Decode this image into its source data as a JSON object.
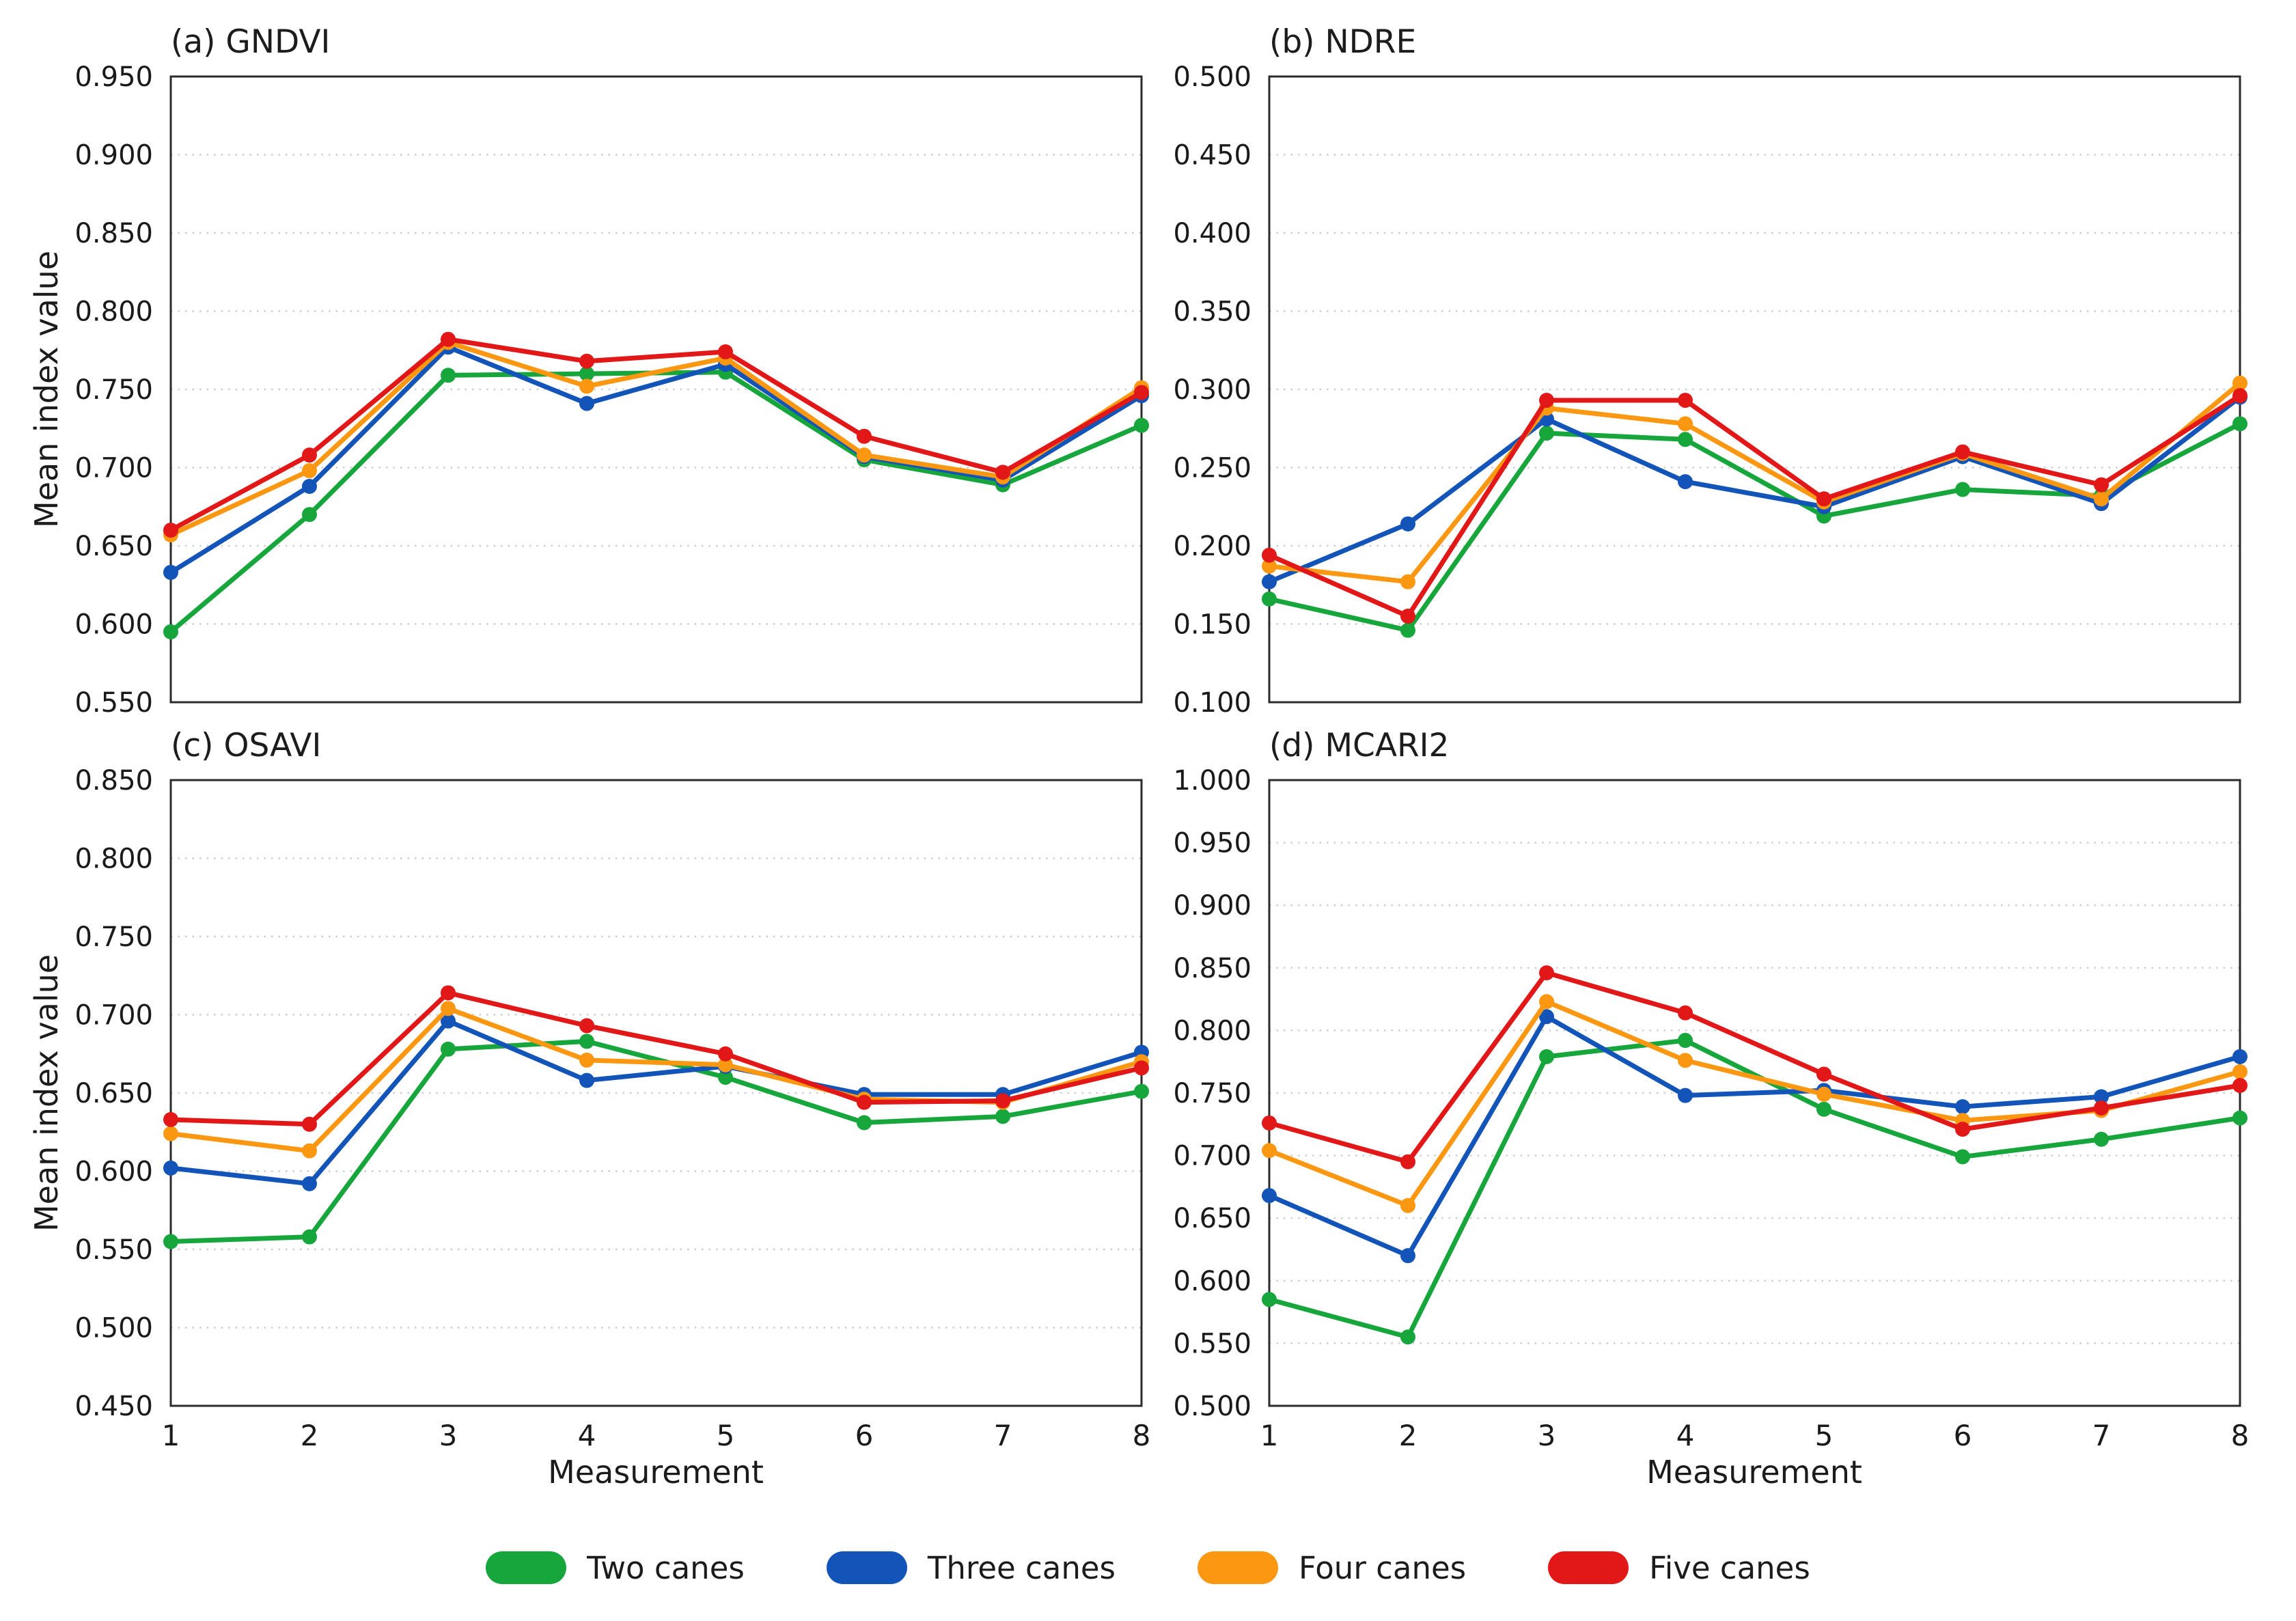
{
  "figure": {
    "ylabel": "Mean index value",
    "xlabel": "Measurement",
    "background": "#ffffff",
    "axis_color": "#2b2b2b",
    "grid_color": "#cccccc",
    "legend_position": "bottom-center",
    "legend": [
      {
        "label": "Two canes",
        "color": "#17A63C"
      },
      {
        "label": "Three canes",
        "color": "#1254B8"
      },
      {
        "label": "Four canes",
        "color": "#FC9712"
      },
      {
        "label": "Five canes",
        "color": "#E21717"
      }
    ]
  },
  "chart_data": [
    {
      "type": "line",
      "panel": "a",
      "title": "(a) GNDVI",
      "xlabel": "Measurement",
      "ylabel": "Mean index value",
      "x": [
        1,
        2,
        3,
        4,
        5,
        6,
        7,
        8
      ],
      "ylim": [
        0.55,
        0.95
      ],
      "ytick_step": 0.05,
      "grid": "horizontal-dotted",
      "show_x_tick_labels": false,
      "series": [
        {
          "name": "Two canes",
          "color": "#17A63C",
          "values": [
            0.595,
            0.67,
            0.759,
            0.76,
            0.761,
            0.705,
            0.689,
            0.727
          ]
        },
        {
          "name": "Three canes",
          "color": "#1254B8",
          "values": [
            0.633,
            0.688,
            0.777,
            0.741,
            0.766,
            0.707,
            0.692,
            0.746
          ]
        },
        {
          "name": "Four canes",
          "color": "#FC9712",
          "values": [
            0.657,
            0.698,
            0.78,
            0.752,
            0.77,
            0.708,
            0.694,
            0.751
          ]
        },
        {
          "name": "Five canes",
          "color": "#E21717",
          "values": [
            0.66,
            0.708,
            0.782,
            0.768,
            0.774,
            0.72,
            0.697,
            0.748
          ]
        }
      ]
    },
    {
      "type": "line",
      "panel": "b",
      "title": "(b) NDRE",
      "xlabel": "Measurement",
      "ylabel": "Mean index value",
      "x": [
        1,
        2,
        3,
        4,
        5,
        6,
        7,
        8
      ],
      "ylim": [
        0.1,
        0.5
      ],
      "ytick_step": 0.05,
      "grid": "horizontal-dotted",
      "show_x_tick_labels": false,
      "series": [
        {
          "name": "Two canes",
          "color": "#17A63C",
          "values": [
            0.166,
            0.146,
            0.272,
            0.268,
            0.219,
            0.236,
            0.232,
            0.278
          ]
        },
        {
          "name": "Three canes",
          "color": "#1254B8",
          "values": [
            0.177,
            0.214,
            0.281,
            0.241,
            0.225,
            0.257,
            0.227,
            0.295
          ]
        },
        {
          "name": "Four canes",
          "color": "#FC9712",
          "values": [
            0.187,
            0.177,
            0.288,
            0.278,
            0.228,
            0.259,
            0.23,
            0.304
          ]
        },
        {
          "name": "Five canes",
          "color": "#E21717",
          "values": [
            0.194,
            0.155,
            0.293,
            0.293,
            0.23,
            0.26,
            0.239,
            0.296
          ]
        }
      ]
    },
    {
      "type": "line",
      "panel": "c",
      "title": "(c) OSAVI",
      "xlabel": "Measurement",
      "ylabel": "Mean index value",
      "x": [
        1,
        2,
        3,
        4,
        5,
        6,
        7,
        8
      ],
      "ylim": [
        0.45,
        0.85
      ],
      "ytick_step": 0.05,
      "grid": "horizontal-dotted",
      "show_x_tick_labels": true,
      "series": [
        {
          "name": "Two canes",
          "color": "#17A63C",
          "values": [
            0.555,
            0.558,
            0.678,
            0.683,
            0.66,
            0.631,
            0.635,
            0.651
          ]
        },
        {
          "name": "Three canes",
          "color": "#1254B8",
          "values": [
            0.602,
            0.592,
            0.696,
            0.658,
            0.667,
            0.649,
            0.649,
            0.676
          ]
        },
        {
          "name": "Four canes",
          "color": "#FC9712",
          "values": [
            0.624,
            0.613,
            0.704,
            0.671,
            0.668,
            0.646,
            0.644,
            0.67
          ]
        },
        {
          "name": "Five canes",
          "color": "#E21717",
          "values": [
            0.633,
            0.63,
            0.714,
            0.693,
            0.675,
            0.644,
            0.645,
            0.666
          ]
        }
      ]
    },
    {
      "type": "line",
      "panel": "d",
      "title": "(d) MCARI2",
      "xlabel": "Measurement",
      "ylabel": "Mean index value",
      "x": [
        1,
        2,
        3,
        4,
        5,
        6,
        7,
        8
      ],
      "ylim": [
        0.5,
        1.0
      ],
      "ytick_step": 0.05,
      "grid": "horizontal-dotted",
      "show_x_tick_labels": true,
      "series": [
        {
          "name": "Two canes",
          "color": "#17A63C",
          "values": [
            0.585,
            0.555,
            0.779,
            0.792,
            0.737,
            0.699,
            0.713,
            0.73
          ]
        },
        {
          "name": "Three canes",
          "color": "#1254B8",
          "values": [
            0.668,
            0.62,
            0.811,
            0.748,
            0.752,
            0.739,
            0.747,
            0.779
          ]
        },
        {
          "name": "Four canes",
          "color": "#FC9712",
          "values": [
            0.704,
            0.66,
            0.823,
            0.776,
            0.749,
            0.728,
            0.736,
            0.767
          ]
        },
        {
          "name": "Five canes",
          "color": "#E21717",
          "values": [
            0.726,
            0.695,
            0.846,
            0.814,
            0.765,
            0.721,
            0.738,
            0.756
          ]
        }
      ]
    }
  ]
}
